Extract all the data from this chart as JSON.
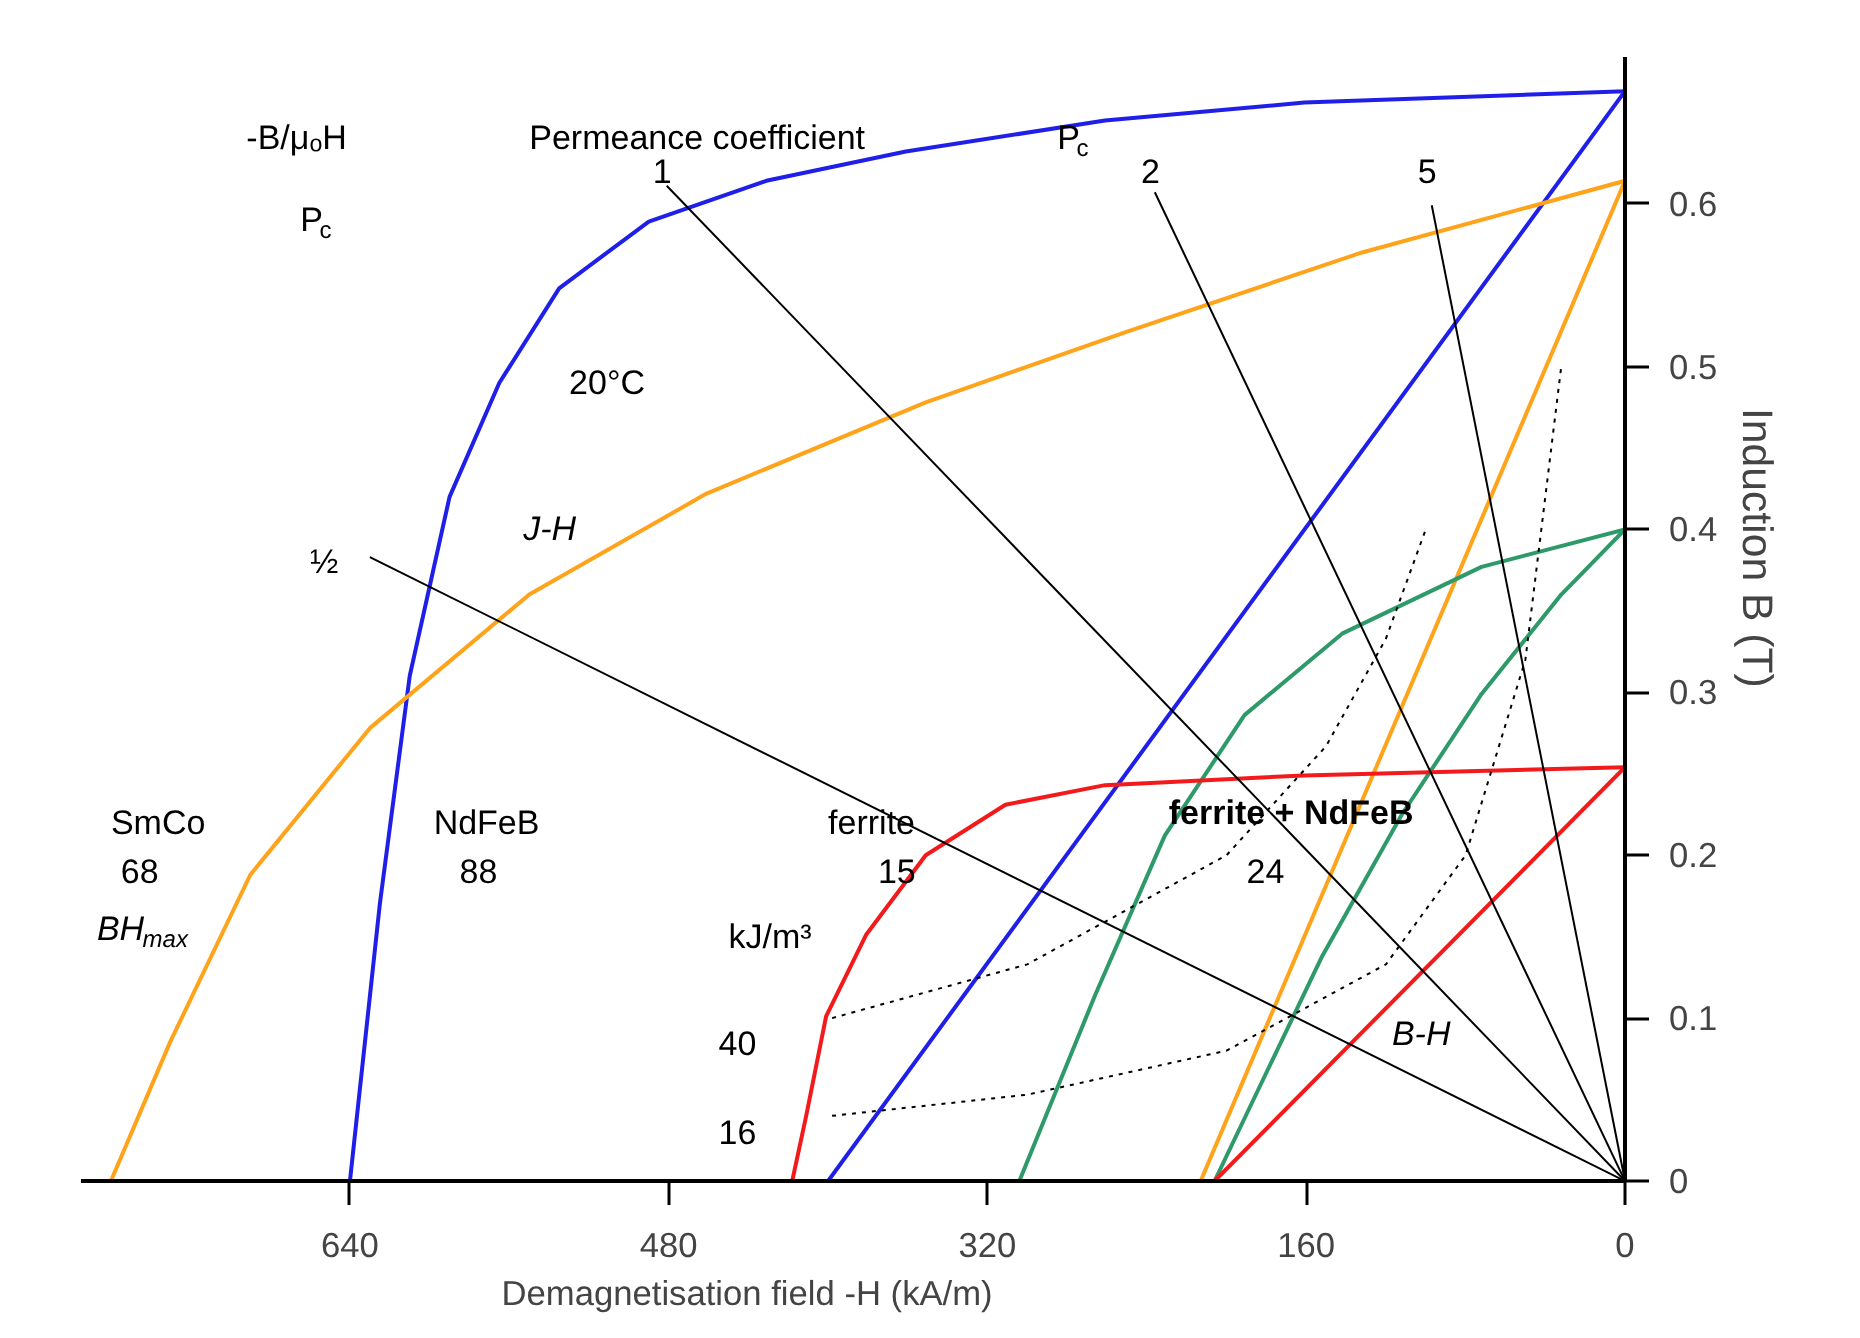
{
  "chart_data": {
    "type": "line",
    "xlabel": "Demagnetisation field            -H            (kA/m)",
    "ylabel": "Induction       B       (T)",
    "xlim": [
      775,
      0
    ],
    "ylim": [
      0,
      0.69
    ],
    "xticks": [
      640,
      480,
      320,
      160,
      0
    ],
    "yticks": [
      0,
      0.1,
      0.2,
      0.3,
      0.4,
      0.5,
      0.6
    ],
    "grid": false,
    "line_style": "solid",
    "marker": "none",
    "series": [
      {
        "color": "#1f1fe8",
        "x": [
          640,
          625,
          610,
          590,
          565,
          535,
          490,
          431,
          361,
          261,
          161,
          0
        ],
        "values": [
          0,
          0.17,
          0.31,
          0.42,
          0.49,
          0.548,
          0.589,
          0.614,
          0.632,
          0.651,
          0.662,
          0.669
        ]
      },
      {
        "color": "#1f1fe8",
        "x": [
          400,
          0
        ],
        "values": [
          0,
          0.669
        ]
      },
      {
        "color": "#ffa31a",
        "x": [
          760,
          730,
          690,
          630,
          550,
          461,
          351,
          251,
          132,
          0
        ],
        "values": [
          0,
          0.086,
          0.188,
          0.278,
          0.36,
          0.422,
          0.478,
          0.521,
          0.57,
          0.614
        ]
      },
      {
        "color": "#ffa31a",
        "x": [
          213,
          0
        ],
        "values": [
          0,
          0.614
        ]
      },
      {
        "color": "#2e9a6a",
        "x": [
          304,
          266,
          231,
          191,
          142,
          72,
          0
        ],
        "values": [
          0,
          0.114,
          0.212,
          0.286,
          0.336,
          0.377,
          0.4
        ]
      },
      {
        "color": "#2e9a6a",
        "x": [
          206,
          181,
          152,
          112,
          72,
          32,
          0
        ],
        "values": [
          0,
          0.064,
          0.138,
          0.225,
          0.299,
          0.36,
          0.4
        ]
      },
      {
        "color": "#f21a1a",
        "x": [
          418,
          411,
          401,
          381,
          351,
          311,
          261,
          161,
          0
        ],
        "values": [
          0,
          0.04,
          0.101,
          0.151,
          0.2,
          0.231,
          0.243,
          0.249,
          0.254
        ]
      },
      {
        "color": "#f21a1a",
        "x": [
          206,
          0
        ],
        "values": [
          0,
          0.254
        ]
      },
      {
        "color": "#000000",
        "x": [
          481,
          0
        ],
        "values": [
          0.611,
          0
        ]
      },
      {
        "color": "#000000",
        "x": [
          236,
          0
        ],
        "values": [
          0.607,
          0
        ]
      },
      {
        "color": "#000000",
        "x": [
          97,
          0
        ],
        "values": [
          0.599,
          0
        ]
      },
      {
        "color": "#000000",
        "x": [
          630,
          0
        ],
        "values": [
          0.383,
          0
        ]
      },
      {
        "color": "#000000",
        "line_style": "dotted",
        "x": [
          398,
          300,
          200,
          150,
          120,
          100
        ],
        "values": [
          0.1,
          0.133,
          0.2,
          0.267,
          0.333,
          0.4
        ]
      },
      {
        "color": "#000000",
        "line_style": "dotted",
        "x": [
          398,
          300,
          200,
          120,
          80,
          50,
          32
        ],
        "values": [
          0.04,
          0.053,
          0.08,
          0.133,
          0.2,
          0.32,
          0.5
        ]
      }
    ],
    "annotations": [
      "-B/μₒH",
      "Permeance coefficient",
      "P$_{c}$",
      "P$_{c}$",
      "1",
      "2",
      "5",
      "½",
      "20°C",
      "J-H",
      "B-H",
      "SmCo",
      "68",
      "BH$_{max}$",
      "NdFeB",
      "88",
      "ferrite",
      "15",
      "ferrite + NdFeB",
      "24",
      "kJ/m³",
      "40",
      "16"
    ]
  }
}
